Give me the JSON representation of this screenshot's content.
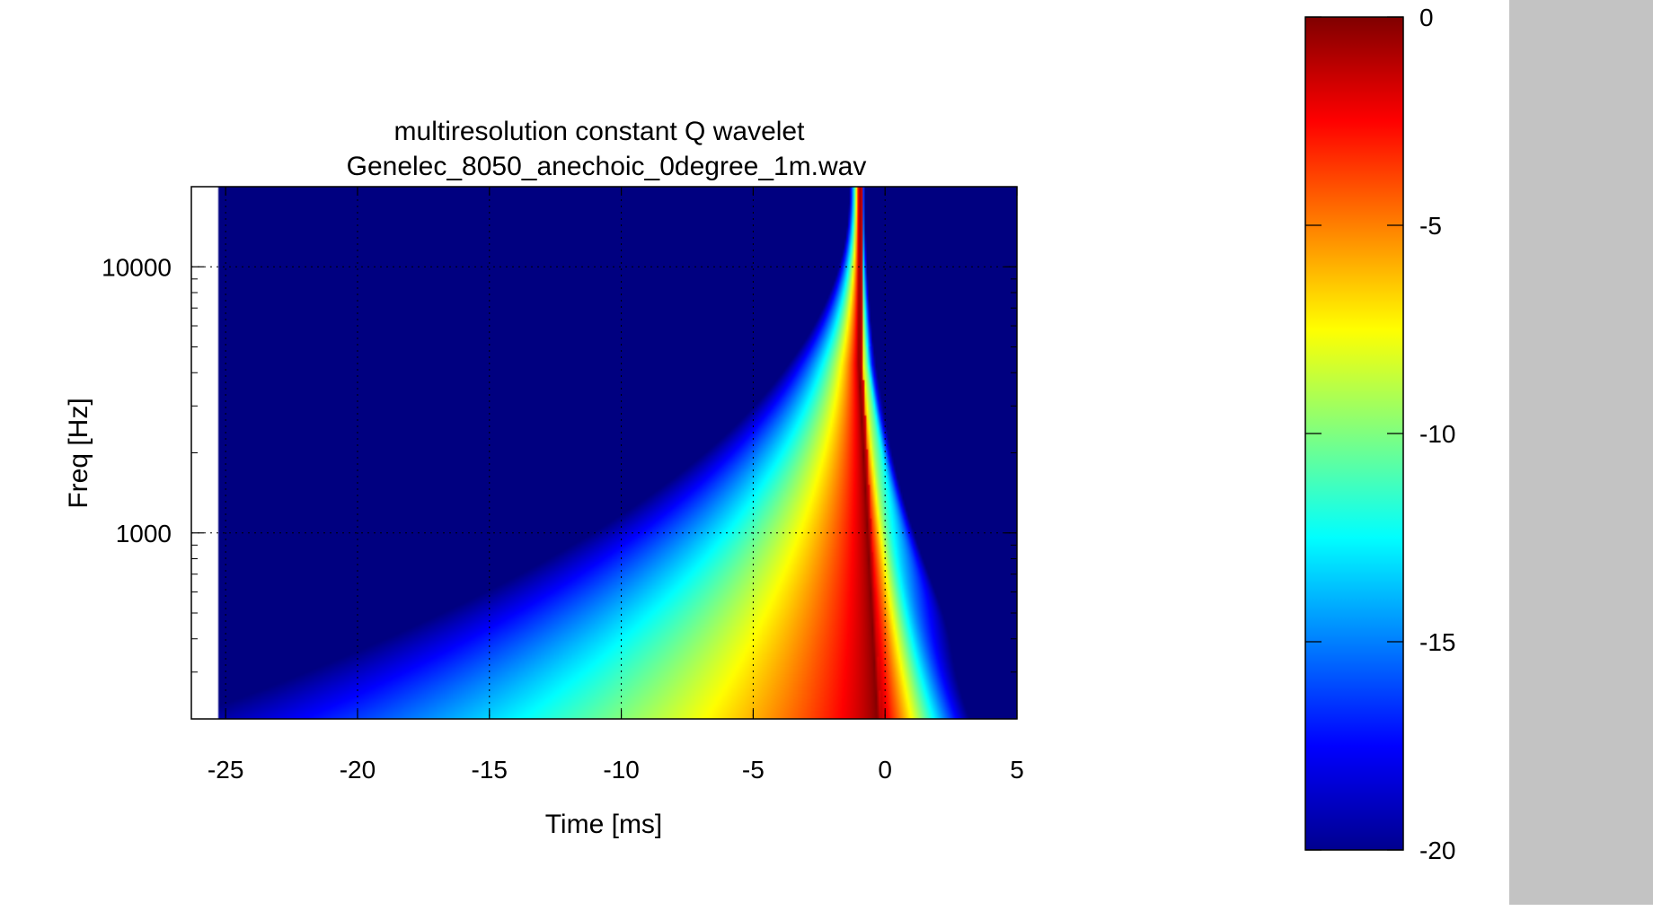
{
  "chart_data": {
    "type": "heatmap",
    "title": "multiresolution constant Q wavelet",
    "subtitle": "Genelec_8050_anechoic_0degree_1m.wav",
    "xlabel": "Time [ms]",
    "ylabel": "Freq [Hz]",
    "xlim": [
      -26.3,
      5
    ],
    "ylim": [
      200,
      20000
    ],
    "yscale": "log",
    "data_x_start": -25.3,
    "grid": true,
    "x_ticks": [
      -25,
      -20,
      -15,
      -10,
      -5,
      0,
      5
    ],
    "x_tick_labels": [
      "-25",
      "-20",
      "-15",
      "-10",
      "-5",
      "0",
      "5"
    ],
    "y_ticks": [
      1000,
      10000
    ],
    "y_tick_labels": [
      "1000",
      "10000"
    ],
    "colormap": "jet",
    "colorbar": {
      "range": [
        -20,
        0
      ],
      "ticks": [
        0,
        -5,
        -10,
        -15,
        -20
      ],
      "tick_labels": [
        "0",
        "-5",
        "-10",
        "-15",
        "-20"
      ]
    },
    "ridge": {
      "peak_time_ms": -1.0,
      "low_freq_peak_time_ms": -0.3,
      "peak_level": 0
    }
  }
}
